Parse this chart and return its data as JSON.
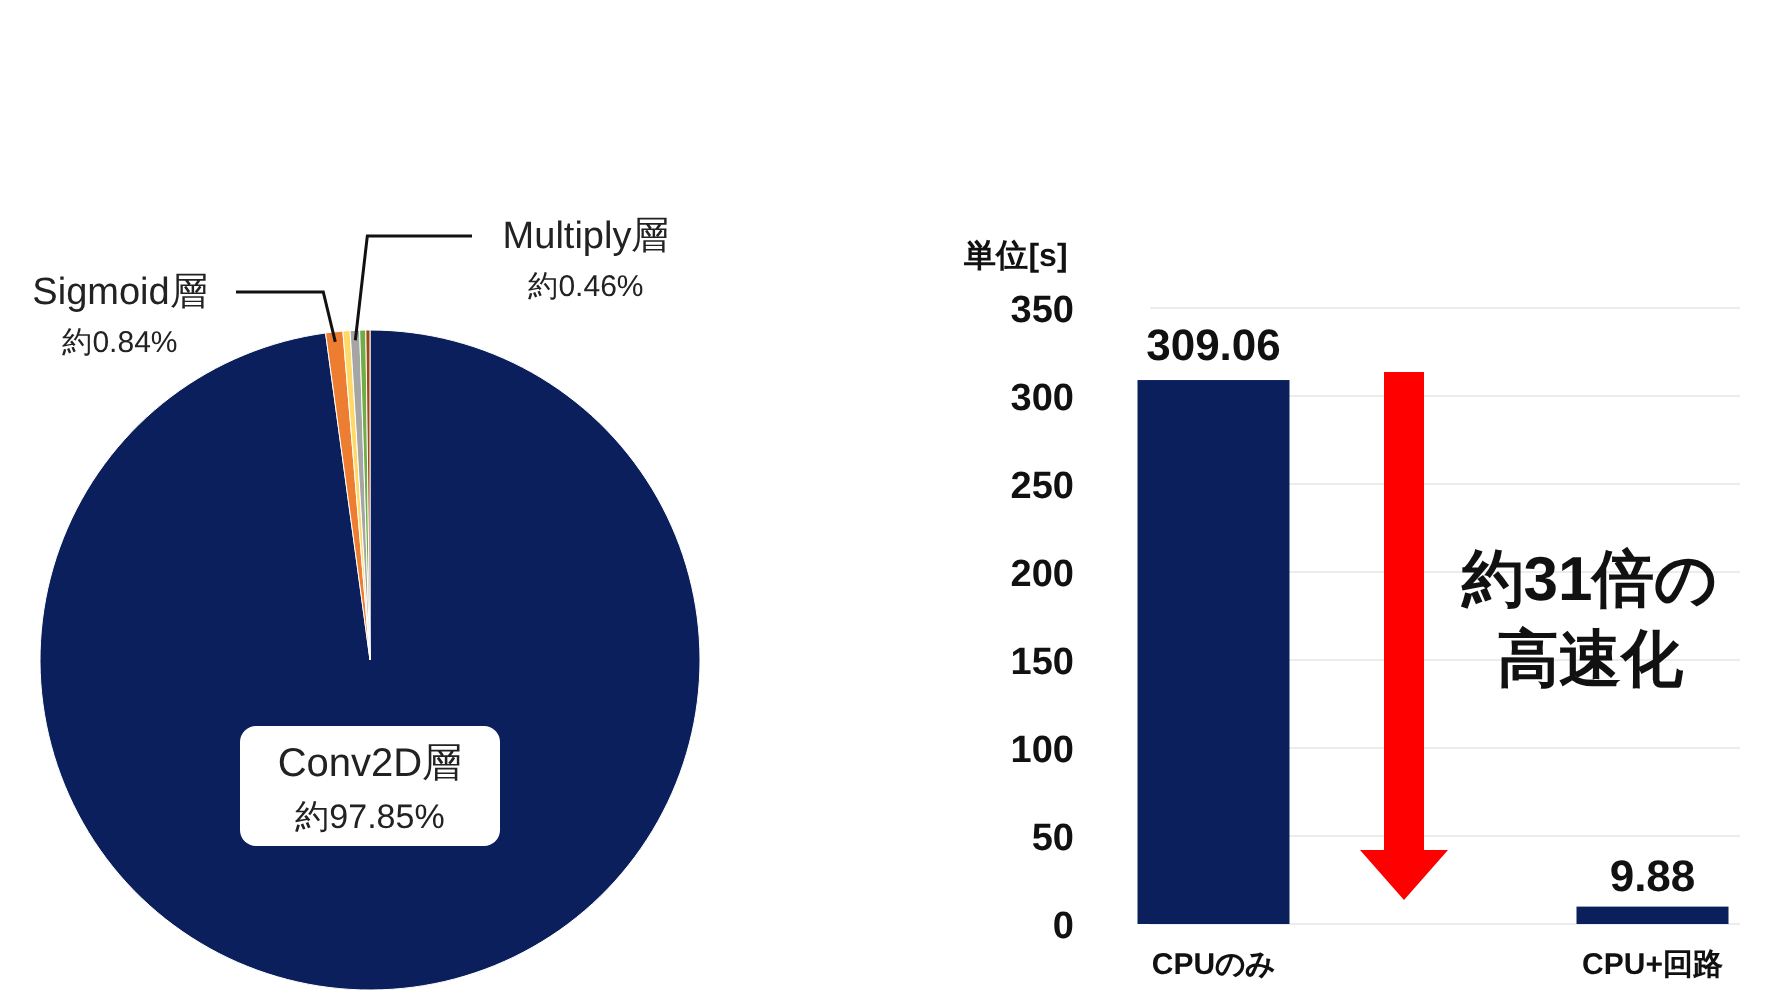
{
  "chart_data": [
    {
      "type": "pie",
      "categories": [
        "Conv2D層",
        "Sigmoid層",
        null,
        "Multiply層",
        null,
        null
      ],
      "values": [
        97.85,
        0.84,
        0.35,
        0.46,
        0.3,
        0.2
      ],
      "colors": [
        "#0a1f5c",
        "#ed7d31",
        "#ffd966",
        "#a5a5a5",
        "#70ad47",
        "#9e480e"
      ],
      "value_labels": [
        "約97.85%",
        "約0.84%",
        null,
        "約0.46%",
        null,
        null
      ]
    },
    {
      "type": "bar",
      "categories": [
        "CPUのみ",
        "CPU+回路"
      ],
      "values": [
        309.06,
        9.88
      ],
      "color": "#0a1f5c",
      "ylabel": "単位[s]",
      "ylim": [
        0,
        350
      ],
      "yticks": [
        0,
        50,
        100,
        150,
        200,
        250,
        300,
        350
      ],
      "grid": "y",
      "data_labels": true,
      "annotations": [
        "約31倍の高速化"
      ]
    }
  ]
}
